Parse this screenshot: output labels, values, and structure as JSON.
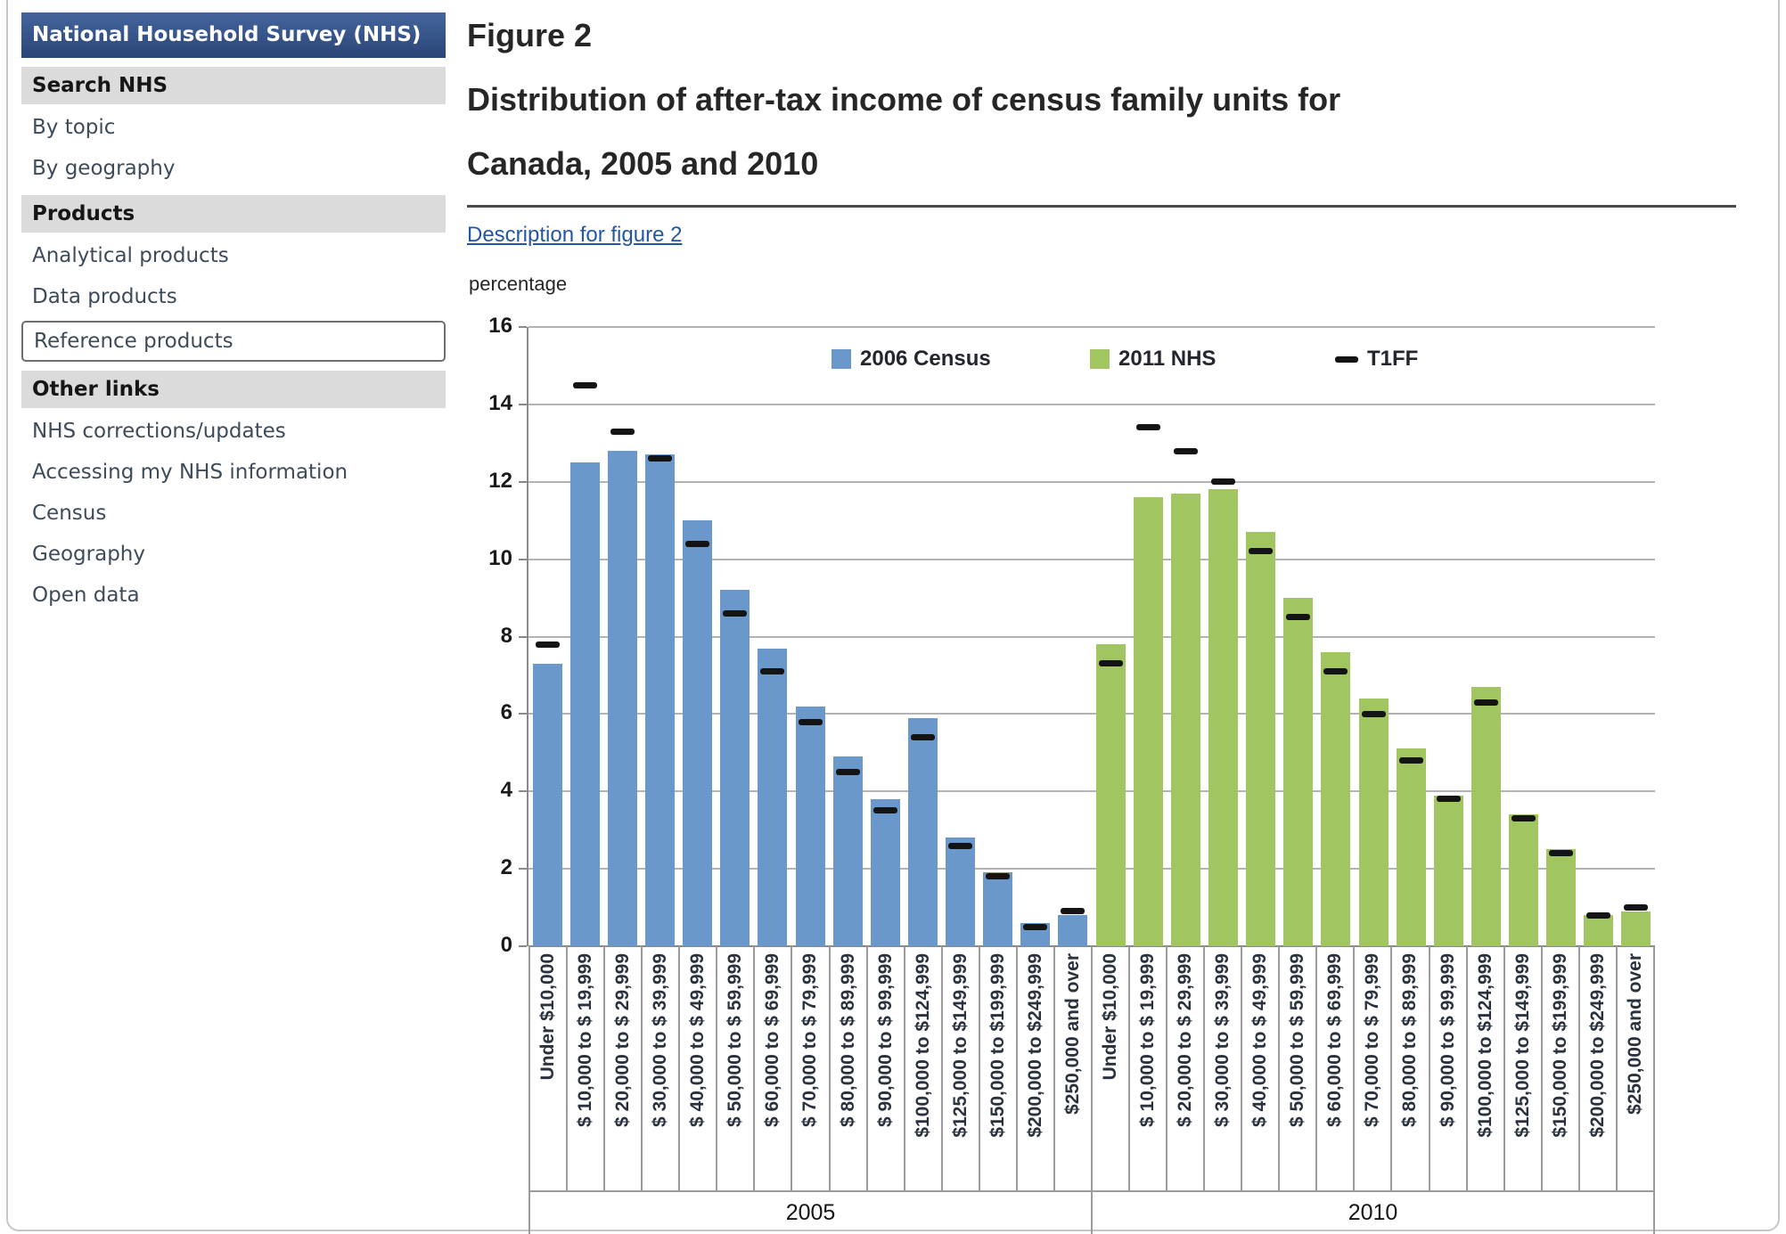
{
  "sidebar": {
    "title": "National Household Survey (NHS)",
    "sections": [
      {
        "header": "Search NHS",
        "items": [
          {
            "label": "By topic"
          },
          {
            "label": "By geography"
          }
        ]
      },
      {
        "header": "Products",
        "items": [
          {
            "label": "Analytical products"
          },
          {
            "label": "Data products"
          },
          {
            "label": "Reference products",
            "selected": true
          }
        ]
      },
      {
        "header": "Other links",
        "items": [
          {
            "label": "NHS corrections/updates"
          },
          {
            "label": "Accessing my NHS information"
          },
          {
            "label": "Census"
          },
          {
            "label": "Geography"
          },
          {
            "label": "Open data"
          }
        ]
      }
    ]
  },
  "main": {
    "figure_label": "Figure 2",
    "title_line1": "Distribution of after-tax income of census family units for",
    "title_line2": "Canada, 2005 and 2010",
    "description_link": "Description for figure 2"
  },
  "chart_data": {
    "type": "bar",
    "title": "Distribution of after-tax income of census family units for Canada, 2005 and 2010",
    "y_axis_label": "percentage",
    "ylim": [
      0,
      16
    ],
    "yticks": [
      0,
      2,
      4,
      6,
      8,
      10,
      12,
      14,
      16
    ],
    "grid": true,
    "legend_position": "top",
    "legend": [
      {
        "label": "2006 Census",
        "type": "bar",
        "color": "#6A98CB"
      },
      {
        "label": "2011 NHS",
        "type": "bar",
        "color": "#A1C561"
      },
      {
        "label": "T1FF",
        "type": "dash",
        "color": "#141414"
      }
    ],
    "categories": [
      "Under $10,000",
      "$ 10,000 to $ 19,999",
      "$ 20,000 to $ 29,999",
      "$ 30,000 to $ 39,999",
      "$ 40,000 to $ 49,999",
      "$ 50,000 to $ 59,999",
      "$ 60,000 to $ 69,999",
      "$ 70,000 to $ 79,999",
      "$ 80,000 to $ 89,999",
      "$ 90,000 to $ 99,999",
      "$100,000 to $124,999",
      "$125,000 to $149,999",
      "$150,000 to $199,999",
      "$200,000 to $249,999",
      "$250,000 and over"
    ],
    "groups": [
      {
        "label": "2005",
        "bar_series": "2006 Census",
        "bar_color": "#6A98CB",
        "bar_values": [
          7.3,
          12.5,
          12.8,
          12.7,
          11.0,
          9.2,
          7.7,
          6.2,
          4.9,
          3.8,
          5.9,
          2.8,
          1.9,
          0.6,
          0.8
        ],
        "t1ff_values": [
          7.8,
          14.5,
          13.3,
          12.6,
          10.4,
          8.6,
          7.1,
          5.8,
          4.5,
          3.5,
          5.4,
          2.6,
          1.8,
          0.5,
          0.9
        ]
      },
      {
        "label": "2010",
        "bar_series": "2011 NHS",
        "bar_color": "#A1C561",
        "bar_values": [
          7.8,
          11.6,
          11.7,
          11.8,
          10.7,
          9.0,
          7.6,
          6.4,
          5.1,
          3.9,
          6.7,
          3.4,
          2.5,
          0.8,
          0.9
        ],
        "t1ff_values": [
          7.3,
          13.4,
          12.8,
          12.0,
          10.2,
          8.5,
          7.1,
          6.0,
          4.8,
          3.8,
          6.3,
          3.3,
          2.4,
          0.8,
          1.0
        ]
      }
    ],
    "colors": {
      "gridline": "#B3B3B3",
      "axis": "#8A8A8A",
      "t1ff_dash": "#141414"
    }
  }
}
